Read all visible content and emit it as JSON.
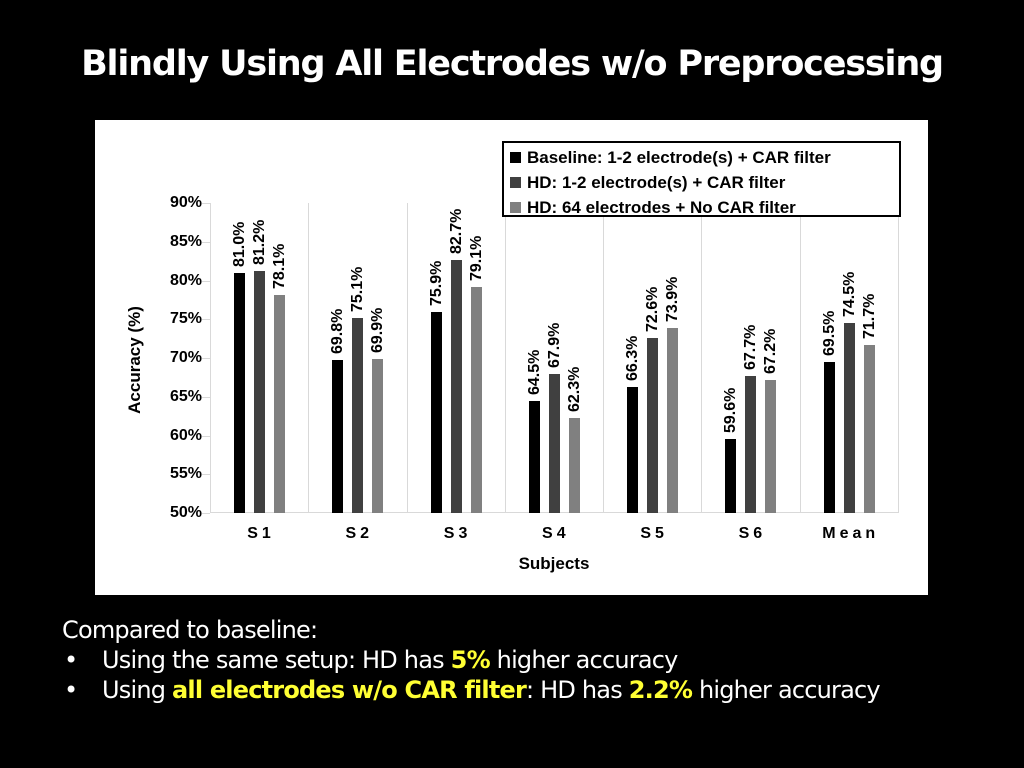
{
  "slide": {
    "title": "Blindly Using All Electrodes w/o Preprocessing"
  },
  "chart_data": {
    "type": "bar",
    "title": "",
    "xlabel": "Subjects",
    "ylabel": "Accuracy (%)",
    "ylim": [
      50,
      90
    ],
    "yticks": [
      "50%",
      "55%",
      "60%",
      "65%",
      "70%",
      "75%",
      "80%",
      "85%",
      "90%"
    ],
    "categories": [
      "S1",
      "S2",
      "S3",
      "S4",
      "S5",
      "S6",
      "Mean"
    ],
    "grid": "vertical category separators",
    "legend_position": "top-right",
    "series": [
      {
        "name": "Baseline: 1-2 electrode(s) + CAR filter",
        "color": "#000000",
        "values": [
          81.0,
          69.8,
          75.9,
          64.5,
          66.3,
          59.6,
          69.5
        ],
        "labels": [
          "81.0%",
          "69.8%",
          "75.9%",
          "64.5%",
          "66.3%",
          "59.6%",
          "69.5%"
        ]
      },
      {
        "name": "HD: 1-2 electrode(s) + CAR filter",
        "color": "#404040",
        "values": [
          81.2,
          75.1,
          82.7,
          67.9,
          72.6,
          67.7,
          74.5
        ],
        "labels": [
          "81.2%",
          "75.1%",
          "82.7%",
          "67.9%",
          "72.6%",
          "67.7%",
          "74.5%"
        ]
      },
      {
        "name": "HD: 64 electrodes + No CAR filter",
        "color": "#808080",
        "values": [
          78.1,
          69.9,
          79.1,
          62.3,
          73.9,
          67.2,
          71.7
        ],
        "labels": [
          "78.1%",
          "69.9%",
          "79.1%",
          "62.3%",
          "73.9%",
          "67.2%",
          "71.7%"
        ]
      }
    ]
  },
  "notes": {
    "intro": "Compared to baseline:",
    "bullet_symbol": "•",
    "bullet1": {
      "pre": "Using the same setup: HD has ",
      "highlight": "5%",
      "post": " higher accuracy"
    },
    "bullet2": {
      "pre": "Using ",
      "highlight1": "all electrodes w/o CAR filter",
      "mid": ": HD has ",
      "highlight2": "2.2%",
      "post": " higher accuracy"
    },
    "highlight_color": "#ffff33"
  }
}
